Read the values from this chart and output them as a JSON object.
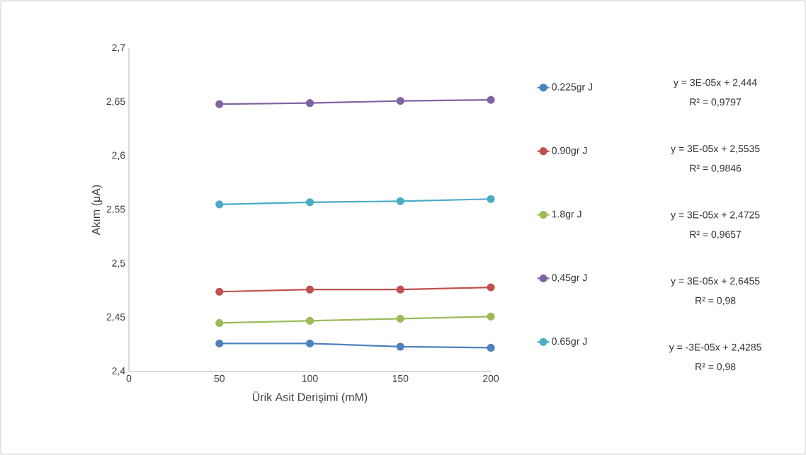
{
  "chart_data": {
    "type": "line",
    "xlabel": "Ürik Asit Derişimi (mM)",
    "ylabel": "Akım (μA)",
    "x": [
      50,
      100,
      150,
      200
    ],
    "series": [
      {
        "name": "0.225gr J",
        "color": "#4f81bd",
        "values": [
          2.426,
          2.426,
          2.423,
          2.422
        ]
      },
      {
        "name": "0.90gr J",
        "color": "#c0504d",
        "values": [
          2.474,
          2.476,
          2.476,
          2.478
        ]
      },
      {
        "name": "1.8gr J",
        "color": "#9bbb59",
        "values": [
          2.445,
          2.447,
          2.449,
          2.451
        ]
      },
      {
        "name": "0,45gr J",
        "color": "#8064a2",
        "values": [
          2.648,
          2.649,
          2.651,
          2.652
        ]
      },
      {
        "name": "0.65gr J",
        "color": "#4bacc6",
        "values": [
          2.555,
          2.557,
          2.558,
          2.56
        ]
      }
    ],
    "xlim": [
      0,
      200
    ],
    "xticks": [
      0,
      50,
      100,
      150,
      200
    ],
    "ylim": [
      2.4,
      2.7
    ],
    "yticks": [
      {
        "value": 2.4,
        "label": "2,4"
      },
      {
        "value": 2.45,
        "label": "2,45"
      },
      {
        "value": 2.5,
        "label": "2,5"
      },
      {
        "value": 2.55,
        "label": "2,55"
      },
      {
        "value": 2.6,
        "label": "2,6"
      },
      {
        "value": 2.65,
        "label": "2,65"
      },
      {
        "value": 2.7,
        "label": "2,7"
      }
    ],
    "grid": false,
    "legend": "right",
    "marker": "circle",
    "line_style": "solid",
    "annotations": [
      "y = 3E-05x + 2,444",
      "R² = 0,9797",
      "y = 3E-05x + 2,5535",
      "R² = 0,9846",
      "y = 3E-05x + 2,4725",
      "R² = 0,9657",
      "y = 3E-05x + 2,6455",
      "R² = 0,98",
      "y = -3E-05x + 2,4285",
      "R² = 0,98"
    ]
  }
}
